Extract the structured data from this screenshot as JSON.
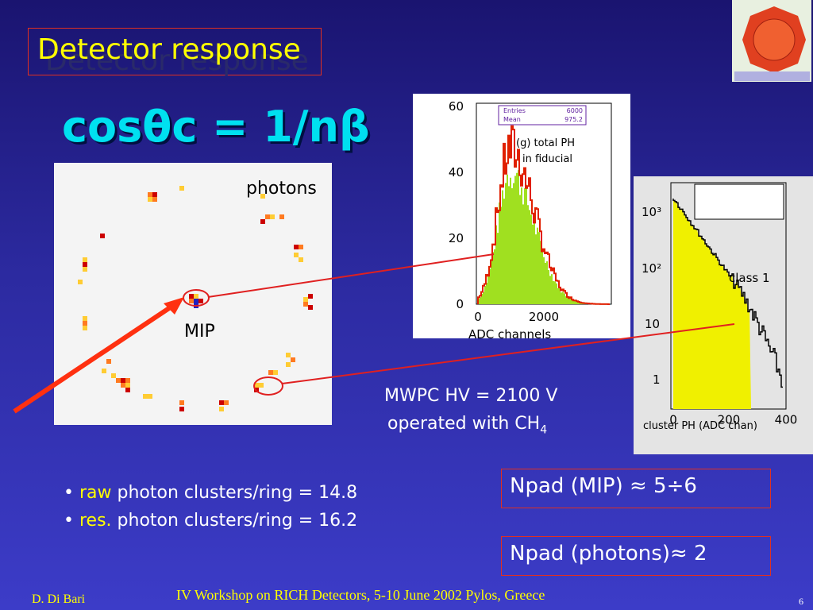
{
  "slide": {
    "title": "Detector response",
    "formula": "cosθc = 1/nβ",
    "event_display": {
      "photons_label": "photons",
      "mip_label": "MIP"
    },
    "histogram_a": {
      "y_ticks": [
        "60",
        "40",
        "20",
        "0"
      ],
      "x_ticks": [
        "0",
        "2000"
      ],
      "x_label": "ADC channels",
      "stats": {
        "entries_label": "Entries",
        "entries": "6000",
        "mean_label": "Mean",
        "mean": "975.2"
      },
      "annotation": [
        "(g) total PH",
        "in fiducial"
      ]
    },
    "histogram_b": {
      "y_ticks": [
        "10³",
        "10²",
        "10",
        "1"
      ],
      "x_ticks": [
        "0",
        "200",
        "400"
      ],
      "x_label": "cluster PH (ADC chan)",
      "annotation": "class 1"
    },
    "conditions": {
      "line1": "MWPC HV = 2100 V",
      "line2": {
        "text": "operated with CH",
        "subscript": "4"
      }
    },
    "bullets": [
      {
        "highlight": "raw",
        "text": "photon clusters/ring = 14.8"
      },
      {
        "highlight": "res.",
        "text": "photon clusters/ring = 16.2"
      }
    ],
    "boxes": [
      "Npad (MIP) ≈ 5÷6",
      "Npad (photons)≈ 2"
    ],
    "footer": {
      "author": "D. Di Bari",
      "event": "IV Workshop on RICH Detectors, 5-10 June 2002 Pylos, Greece",
      "page": "6"
    }
  }
}
